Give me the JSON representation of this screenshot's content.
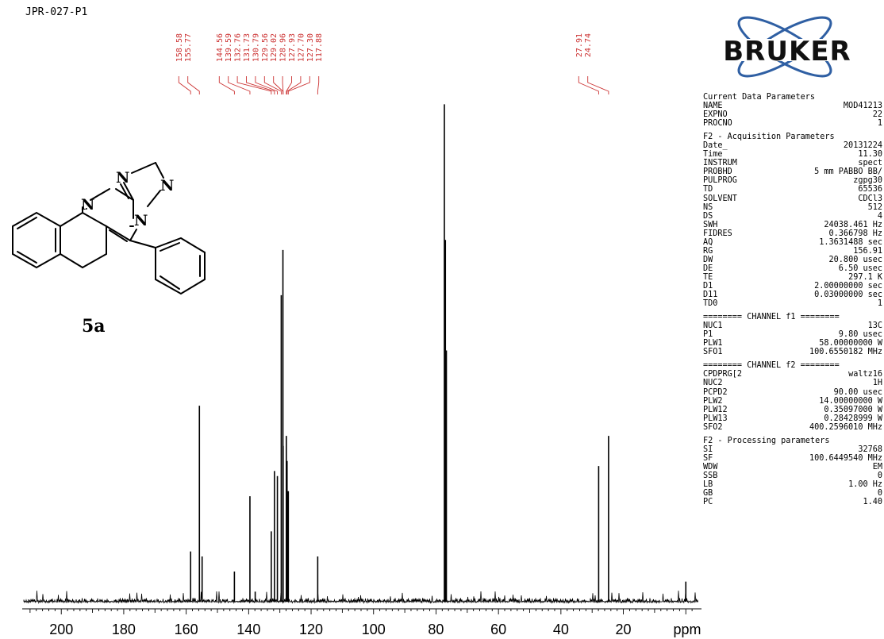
{
  "sample_id": "JPR-027-P1",
  "compound_label": "5a",
  "structure_atoms": [
    "N",
    "N",
    "N",
    "N"
  ],
  "logo_text": "BRUKER",
  "colors": {
    "peak_labels": "#cc3333",
    "spectrum": "#000000",
    "axis_text": "#000000"
  },
  "parameters": {
    "current": {
      "heading": "Current Data Parameters",
      "rows": [
        [
          "NAME",
          "MOD41213"
        ],
        [
          "EXPNO",
          "22"
        ],
        [
          "PROCNO",
          "1"
        ]
      ]
    },
    "acquisition": {
      "heading": "F2 - Acquisition Parameters",
      "rows": [
        [
          "Date_",
          "20131224"
        ],
        [
          "Time",
          "11.30"
        ],
        [
          "INSTRUM",
          "spect"
        ],
        [
          "PROBHD",
          "5 mm PABBO BB/"
        ],
        [
          "PULPROG",
          "zgpg30"
        ],
        [
          "TD",
          "65536"
        ],
        [
          "SOLVENT",
          "CDCl3"
        ],
        [
          "NS",
          "512"
        ],
        [
          "DS",
          "4"
        ],
        [
          "SWH",
          "24038.461 Hz"
        ],
        [
          "FIDRES",
          "0.366798 Hz"
        ],
        [
          "AQ",
          "1.3631488 sec"
        ],
        [
          "RG",
          "156.91"
        ],
        [
          "DW",
          "20.800 usec"
        ],
        [
          "DE",
          "6.50 usec"
        ],
        [
          "TE",
          "297.1 K"
        ],
        [
          "D1",
          "2.00000000 sec"
        ],
        [
          "D11",
          "0.03000000 sec"
        ],
        [
          "TD0",
          "1"
        ]
      ]
    },
    "channel1": {
      "heading": "======== CHANNEL f1 ========",
      "rows": [
        [
          "NUC1",
          "13C"
        ],
        [
          "P1",
          "9.80 usec"
        ],
        [
          "PLW1",
          "58.00000000 W"
        ],
        [
          "SFO1",
          "100.6550182 MHz"
        ]
      ]
    },
    "channel2": {
      "heading": "======== CHANNEL f2 ========",
      "rows": [
        [
          "CPDPRG[2",
          "waltz16"
        ],
        [
          "NUC2",
          "1H"
        ],
        [
          "PCPD2",
          "90.00 usec"
        ],
        [
          "PLW2",
          "14.00000000 W"
        ],
        [
          "PLW12",
          "0.35097000 W"
        ],
        [
          "PLW13",
          "0.28428999 W"
        ],
        [
          "SFO2",
          "400.2596010 MHz"
        ]
      ]
    },
    "processing": {
      "heading": "F2 - Processing parameters",
      "rows": [
        [
          "SI",
          "32768"
        ],
        [
          "SF",
          "100.6449540 MHz"
        ],
        [
          "WDW",
          "EM"
        ],
        [
          "SSB",
          "0"
        ],
        [
          "LB",
          "1.00 Hz"
        ],
        [
          "GB",
          "0"
        ],
        [
          "PC",
          "1.40"
        ]
      ]
    }
  },
  "chart_data": {
    "type": "line",
    "xlabel": "ppm",
    "x_ticks": [
      200,
      180,
      160,
      140,
      120,
      100,
      80,
      60,
      40,
      20
    ],
    "xlim": [
      212,
      -4
    ],
    "x_reversed": true,
    "peak_labels": [
      "158.58",
      "155.77",
      "144.56",
      "139.59",
      "132.76",
      "131.73",
      "130.79",
      "129.56",
      "129.02",
      "128.96",
      "127.93",
      "127.70",
      "127.30",
      "117.88",
      "27.91",
      "24.74"
    ],
    "peaks": [
      {
        "ppm": 158.58,
        "intensity": 0.1
      },
      {
        "ppm": 155.77,
        "intensity": 0.39
      },
      {
        "ppm": 154.9,
        "intensity": 0.09
      },
      {
        "ppm": 144.56,
        "intensity": 0.06
      },
      {
        "ppm": 139.59,
        "intensity": 0.21
      },
      {
        "ppm": 137.9,
        "intensity": 0.02
      },
      {
        "ppm": 132.76,
        "intensity": 0.14
      },
      {
        "ppm": 131.73,
        "intensity": 0.26
      },
      {
        "ppm": 130.79,
        "intensity": 0.25
      },
      {
        "ppm": 129.56,
        "intensity": 0.61
      },
      {
        "ppm": 129.02,
        "intensity": 0.7
      },
      {
        "ppm": 128.96,
        "intensity": 0.31
      },
      {
        "ppm": 127.93,
        "intensity": 0.33
      },
      {
        "ppm": 127.7,
        "intensity": 0.28
      },
      {
        "ppm": 127.3,
        "intensity": 0.22
      },
      {
        "ppm": 117.88,
        "intensity": 0.09
      },
      {
        "ppm": 77.32,
        "intensity": 0.99
      },
      {
        "ppm": 77.0,
        "intensity": 0.72
      },
      {
        "ppm": 76.68,
        "intensity": 0.5
      },
      {
        "ppm": 27.91,
        "intensity": 0.27
      },
      {
        "ppm": 24.74,
        "intensity": 0.33
      },
      {
        "ppm": 0.0,
        "intensity": 0.04
      }
    ]
  }
}
